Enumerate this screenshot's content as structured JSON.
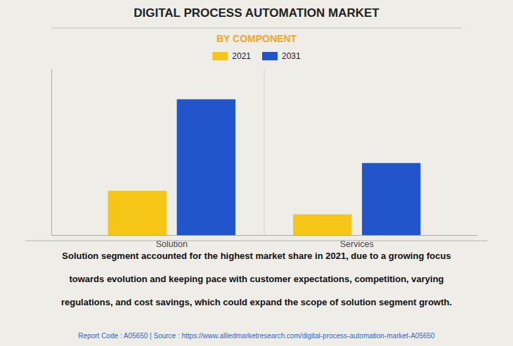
{
  "chart_data": {
    "type": "bar",
    "title": "DIGITAL PROCESS AUTOMATION MARKET",
    "subtitle": "BY COMPONENT",
    "categories": [
      "Solution",
      "Services"
    ],
    "series": [
      {
        "name": "2021",
        "color": "#F5C518",
        "values": [
          3.2,
          1.5
        ]
      },
      {
        "name": "2031",
        "color": "#2255CC",
        "values": [
          9.8,
          5.2
        ]
      }
    ],
    "ylim": [
      0,
      12
    ],
    "grid": false,
    "tick_labels": "x",
    "legend": "top",
    "annotations": [
      "Solution segment accounted for the highest market share in 2021, due to a growing focus",
      "towards evolution and keeping pace with customer expectations, competition, varying",
      "regulations, and cost savings, which could expand the scope of solution segment growth."
    ],
    "footer": "Report Code : A05650  |  Source : https://www.alliedmarketresearch.com/digital-process-automation-market-A05650"
  }
}
